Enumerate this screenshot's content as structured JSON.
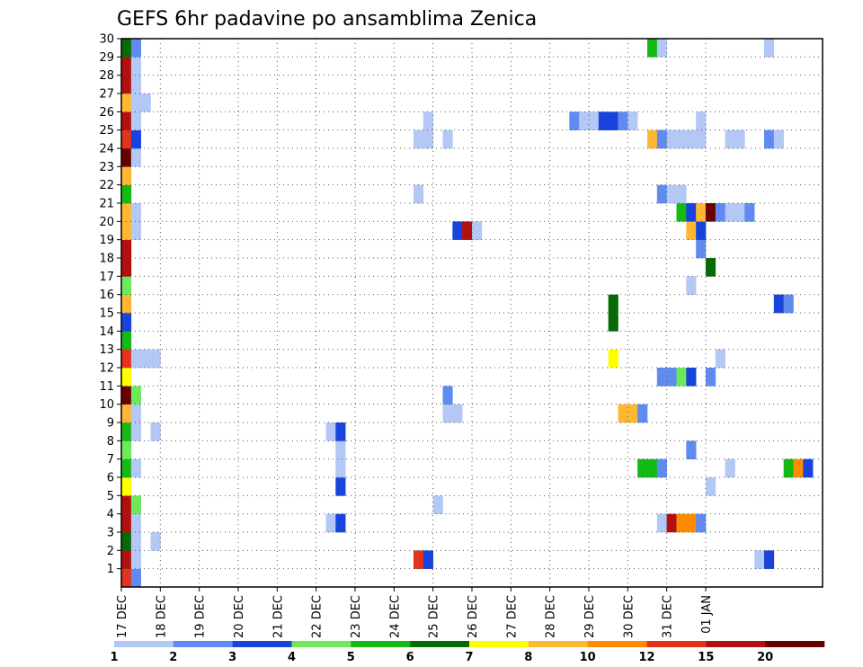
{
  "chart_data": {
    "type": "heatmap",
    "title": "GEFS 6hr padavine po ansamblima Zenica",
    "xlabel": "",
    "ylabel": "",
    "x_ticks": [
      "17 DEC",
      "18 DEC",
      "19 DEC",
      "20 DEC",
      "21 DEC",
      "22 DEC",
      "23 DEC",
      "24 DEC",
      "25 DEC",
      "26 DEC",
      "27 DEC",
      "28 DEC",
      "29 DEC",
      "30 DEC",
      "31 DEC",
      "01 JAN"
    ],
    "y_ticks": [
      "1",
      "2",
      "3",
      "4",
      "5",
      "6",
      "7",
      "8",
      "9",
      "10",
      "11",
      "12",
      "13",
      "14",
      "15",
      "16",
      "17",
      "18",
      "19",
      "20",
      "21",
      "22",
      "23",
      "24",
      "25",
      "26",
      "27",
      "28",
      "29",
      "30"
    ],
    "x_step": "6hr",
    "grid": true,
    "colorbar": {
      "levels": [
        "1",
        "2",
        "3",
        "4",
        "5",
        "6",
        "7",
        "8",
        "10",
        "12",
        "15",
        "20"
      ],
      "colors": [
        "#ffffff",
        "#b3c8f5",
        "#5f8bf0",
        "#1844dc",
        "#6ee95a",
        "#14b914",
        "#066b06",
        "#ffff00",
        "#ffb733",
        "#ff8c00",
        "#e5321a",
        "#b40f0f",
        "#6a0000"
      ]
    },
    "cells": [
      [
        1,
        0,
        10
      ],
      [
        1,
        1,
        2
      ],
      [
        2,
        0,
        11
      ],
      [
        2,
        1,
        1
      ],
      [
        3,
        0,
        6
      ],
      [
        3,
        1,
        1
      ],
      [
        3,
        3,
        1
      ],
      [
        4,
        0,
        11
      ],
      [
        4,
        1,
        1
      ],
      [
        5,
        0,
        11
      ],
      [
        5,
        1,
        4
      ],
      [
        6,
        0,
        7
      ],
      [
        7,
        0,
        5
      ],
      [
        7,
        1,
        1
      ],
      [
        8,
        0,
        4
      ],
      [
        9,
        0,
        5
      ],
      [
        9,
        1,
        1
      ],
      [
        9,
        3,
        1
      ],
      [
        10,
        0,
        8
      ],
      [
        10,
        1,
        1
      ],
      [
        11,
        0,
        12
      ],
      [
        11,
        1,
        4
      ],
      [
        12,
        0,
        7
      ],
      [
        13,
        0,
        10
      ],
      [
        13,
        1,
        1
      ],
      [
        13,
        2,
        1
      ],
      [
        13,
        3,
        1
      ],
      [
        14,
        0,
        5
      ],
      [
        15,
        0,
        3
      ],
      [
        16,
        0,
        8
      ],
      [
        17,
        0,
        4
      ],
      [
        18,
        0,
        11
      ],
      [
        19,
        0,
        11
      ],
      [
        20,
        0,
        8
      ],
      [
        20,
        1,
        1
      ],
      [
        21,
        0,
        8
      ],
      [
        21,
        1,
        1
      ],
      [
        22,
        0,
        5
      ],
      [
        23,
        0,
        8
      ],
      [
        24,
        0,
        12
      ],
      [
        24,
        1,
        1
      ],
      [
        25,
        0,
        10
      ],
      [
        25,
        1,
        3
      ],
      [
        26,
        0,
        11
      ],
      [
        26,
        1,
        1
      ],
      [
        27,
        0,
        8
      ],
      [
        27,
        1,
        1
      ],
      [
        27,
        2,
        1
      ],
      [
        28,
        0,
        11
      ],
      [
        28,
        1,
        1
      ],
      [
        29,
        0,
        11
      ],
      [
        29,
        1,
        1
      ],
      [
        30,
        0,
        6
      ],
      [
        30,
        1,
        2
      ],
      [
        2,
        30,
        10
      ],
      [
        2,
        31,
        3
      ],
      [
        4,
        21,
        1
      ],
      [
        4,
        22,
        3
      ],
      [
        5,
        32,
        1
      ],
      [
        6,
        22,
        3
      ],
      [
        7,
        22,
        1
      ],
      [
        8,
        22,
        1
      ],
      [
        9,
        21,
        1
      ],
      [
        9,
        22,
        3
      ],
      [
        10,
        33,
        1
      ],
      [
        10,
        34,
        1
      ],
      [
        11,
        33,
        2
      ],
      [
        22,
        30,
        1
      ],
      [
        25,
        30,
        1
      ],
      [
        25,
        31,
        1
      ],
      [
        26,
        31,
        1
      ],
      [
        25,
        33,
        1
      ],
      [
        20,
        34,
        3
      ],
      [
        20,
        35,
        11
      ],
      [
        20,
        36,
        1
      ],
      [
        16,
        50,
        6
      ],
      [
        15,
        50,
        6
      ],
      [
        13,
        50,
        7
      ],
      [
        10,
        51,
        8
      ],
      [
        10,
        52,
        8
      ],
      [
        10,
        53,
        2
      ],
      [
        7,
        53,
        5
      ],
      [
        7,
        54,
        5
      ],
      [
        7,
        55,
        2
      ],
      [
        4,
        55,
        1
      ],
      [
        4,
        56,
        11
      ],
      [
        4,
        57,
        9
      ],
      [
        4,
        58,
        9
      ],
      [
        4,
        59,
        2
      ],
      [
        8,
        58,
        2
      ],
      [
        6,
        60,
        1
      ],
      [
        12,
        55,
        2
      ],
      [
        12,
        56,
        2
      ],
      [
        12,
        57,
        4
      ],
      [
        12,
        58,
        3
      ],
      [
        12,
        60,
        2
      ],
      [
        13,
        61,
        1
      ],
      [
        17,
        58,
        1
      ],
      [
        18,
        60,
        6
      ],
      [
        19,
        59,
        2
      ],
      [
        20,
        58,
        8
      ],
      [
        20,
        59,
        3
      ],
      [
        21,
        57,
        5
      ],
      [
        21,
        58,
        3
      ],
      [
        21,
        59,
        8
      ],
      [
        21,
        60,
        12
      ],
      [
        21,
        61,
        2
      ],
      [
        21,
        62,
        1
      ],
      [
        21,
        63,
        1
      ],
      [
        21,
        64,
        2
      ],
      [
        22,
        55,
        2
      ],
      [
        22,
        56,
        1
      ],
      [
        22,
        57,
        1
      ],
      [
        25,
        54,
        8
      ],
      [
        25,
        55,
        2
      ],
      [
        25,
        56,
        1
      ],
      [
        25,
        57,
        1
      ],
      [
        25,
        58,
        1
      ],
      [
        25,
        59,
        1
      ],
      [
        25,
        62,
        1
      ],
      [
        25,
        63,
        1
      ],
      [
        25,
        66,
        2
      ],
      [
        25,
        67,
        1
      ],
      [
        26,
        46,
        2
      ],
      [
        26,
        47,
        1
      ],
      [
        26,
        48,
        1
      ],
      [
        26,
        49,
        3
      ],
      [
        26,
        50,
        3
      ],
      [
        26,
        51,
        2
      ],
      [
        26,
        52,
        1
      ],
      [
        26,
        59,
        1
      ],
      [
        30,
        54,
        5
      ],
      [
        30,
        55,
        1
      ],
      [
        30,
        66,
        1
      ],
      [
        16,
        67,
        3
      ],
      [
        16,
        68,
        2
      ],
      [
        7,
        68,
        5
      ],
      [
        7,
        69,
        9
      ],
      [
        7,
        70,
        3
      ],
      [
        2,
        65,
        1
      ],
      [
        2,
        66,
        3
      ],
      [
        7,
        62,
        1
      ]
    ]
  }
}
